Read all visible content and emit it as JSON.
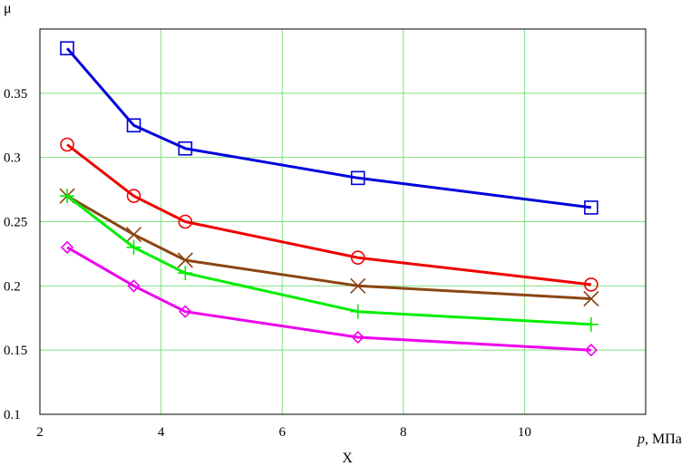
{
  "chart_data": {
    "type": "line",
    "ylabel": "μ",
    "xlabel": "X",
    "xunit_var": "p",
    "xunit_rest": ", МПа",
    "xlim": [
      2,
      12
    ],
    "ylim": [
      0.1,
      0.4
    ],
    "xticks": [
      2,
      4,
      6,
      8,
      10
    ],
    "yticks": [
      0.1,
      0.15,
      0.2,
      0.25,
      0.3,
      0.35
    ],
    "xtick_labels": [
      "2",
      "4",
      "6",
      "8",
      "10"
    ],
    "ytick_labels": [
      "0.1",
      "0.15",
      "0.2",
      "0.25",
      "0.3",
      "0.35"
    ],
    "grid": true,
    "grid_color": "#80e080",
    "x": [
      2.45,
      3.55,
      4.4,
      7.25,
      11.1
    ],
    "series": [
      {
        "values": [
          0.385,
          0.325,
          0.307,
          0.284,
          0.261
        ],
        "color": "#0000dd",
        "marker": "square"
      },
      {
        "values": [
          0.31,
          0.27,
          0.25,
          0.222,
          0.201
        ],
        "color": "#ee0000",
        "marker": "circle"
      },
      {
        "values": [
          0.27,
          0.24,
          0.22,
          0.2,
          0.19
        ],
        "color": "#8b4513",
        "marker": "x"
      },
      {
        "values": [
          0.27,
          0.23,
          0.21,
          0.18,
          0.17
        ],
        "color": "#00ee00",
        "marker": "plus"
      },
      {
        "values": [
          0.23,
          0.2,
          0.18,
          0.16,
          0.15
        ],
        "color": "#ee00ee",
        "marker": "diamond"
      }
    ]
  }
}
